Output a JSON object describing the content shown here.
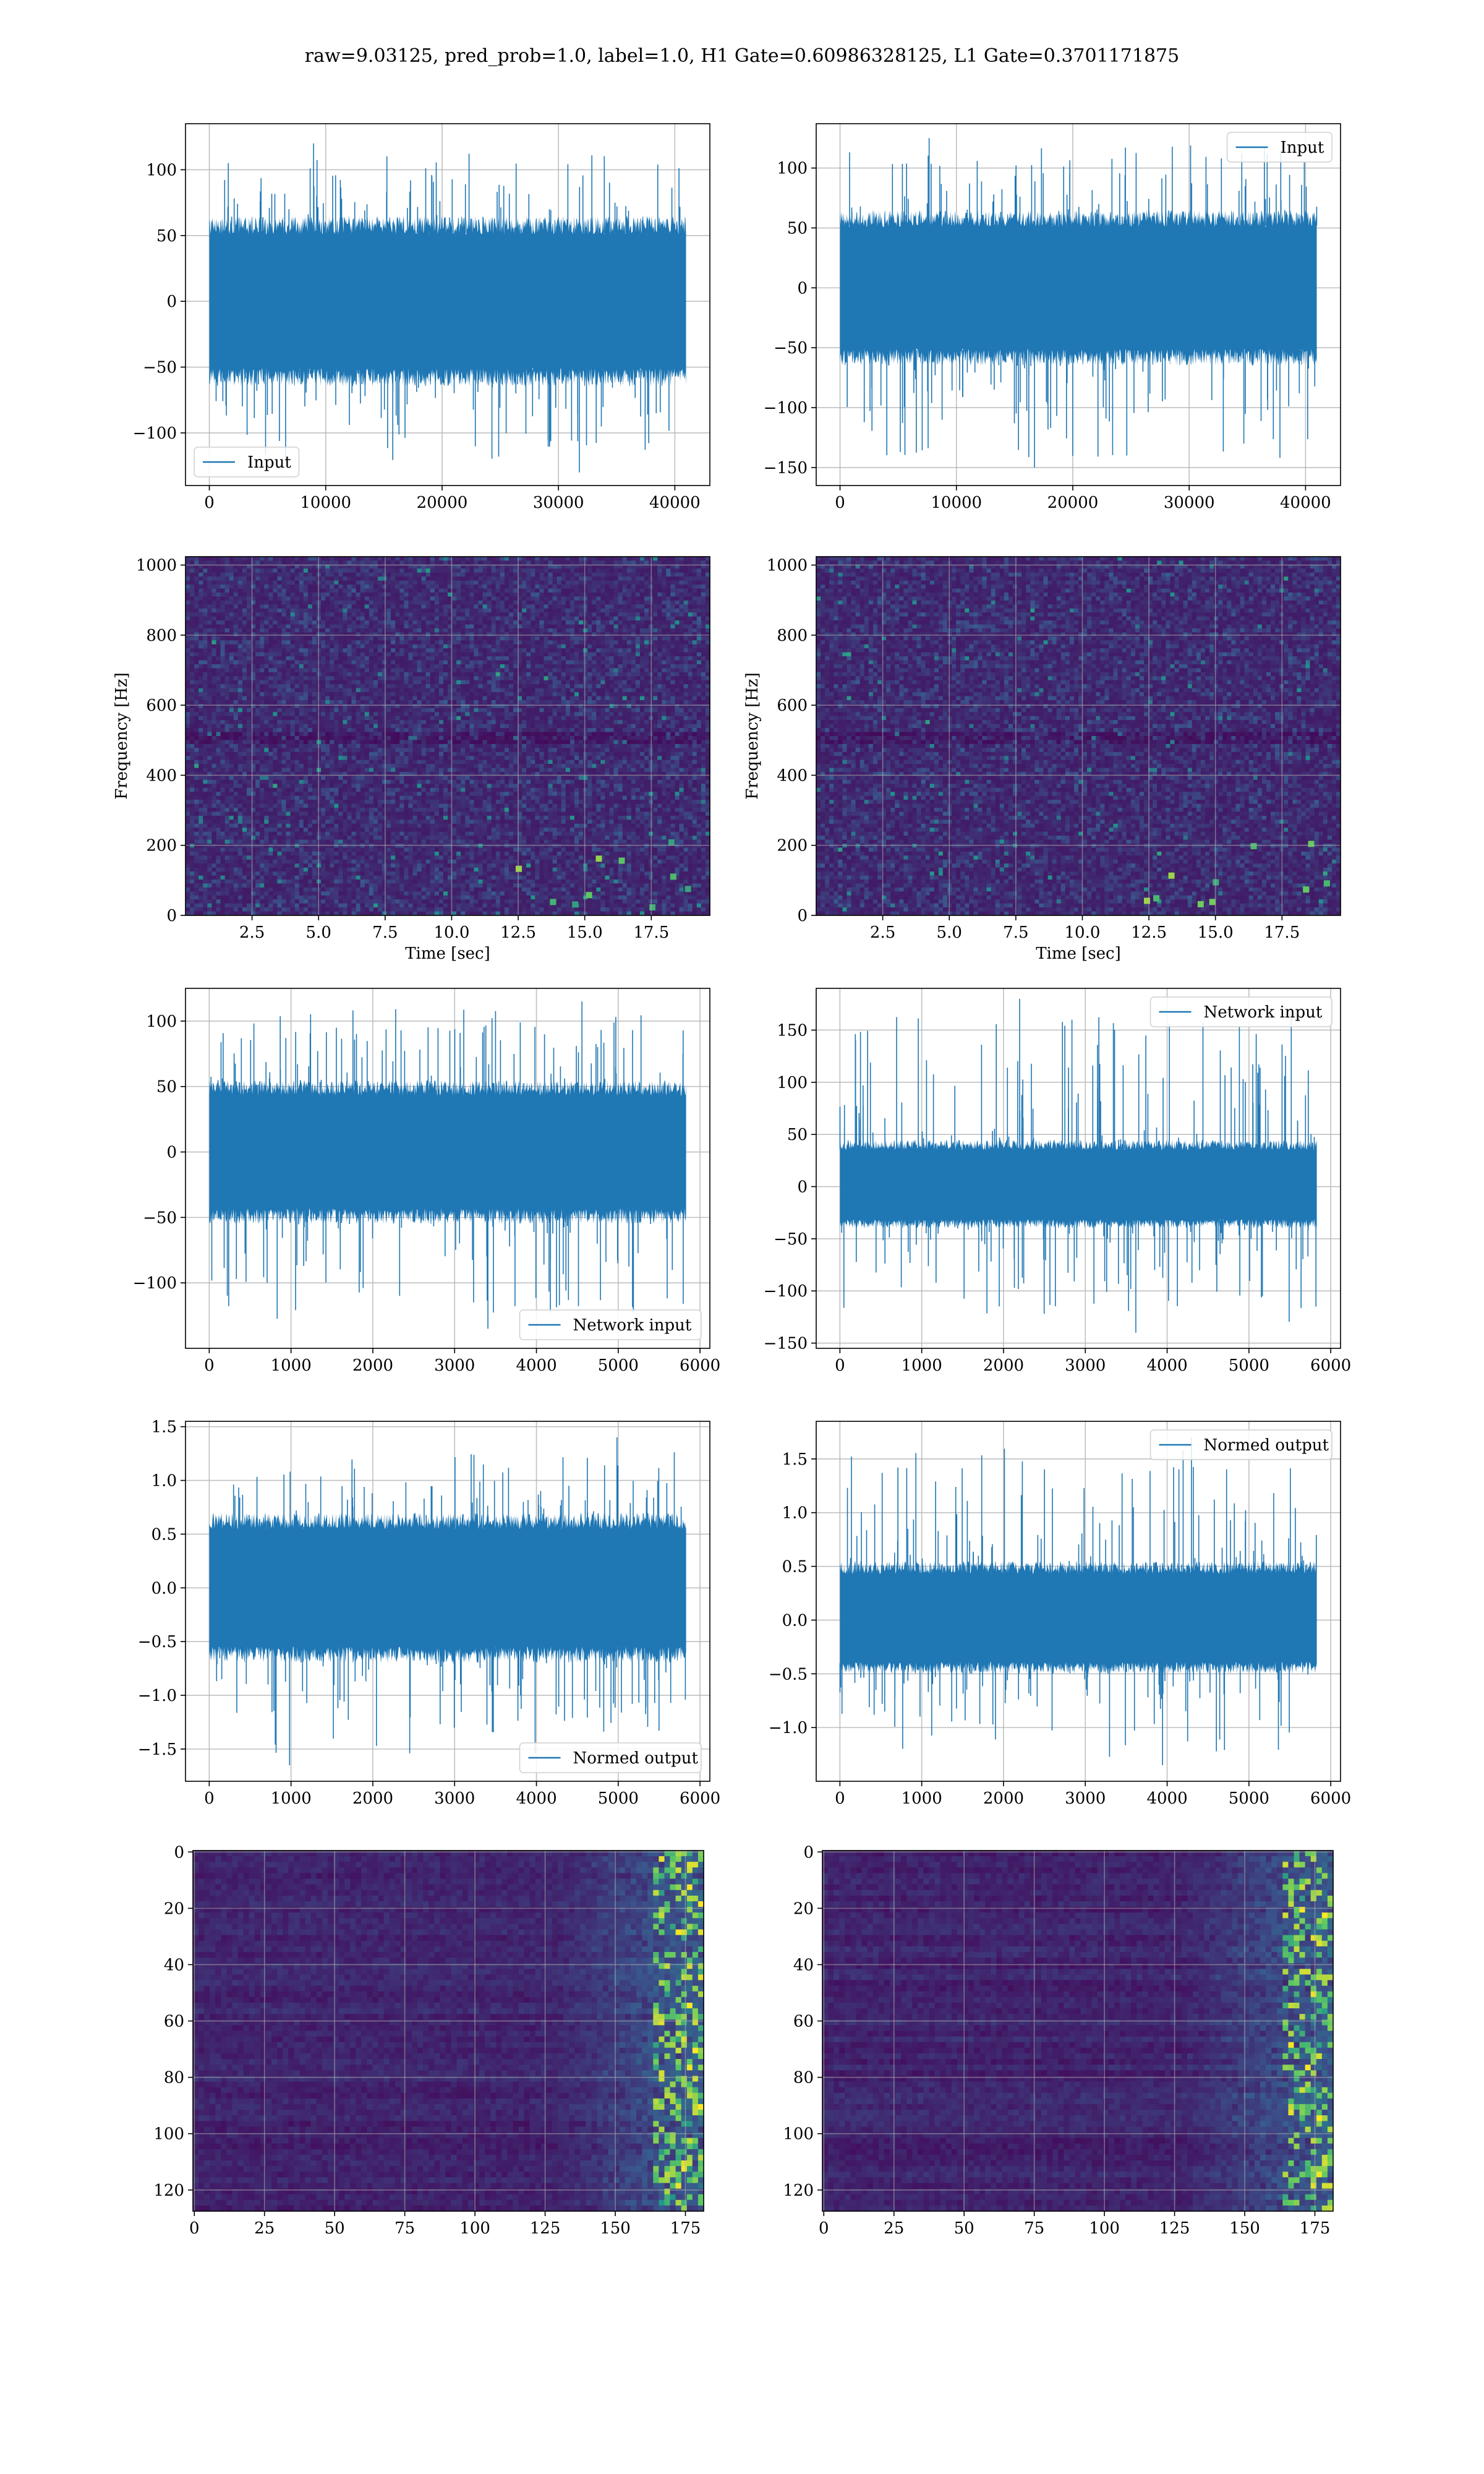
{
  "figure": {
    "suptitle": "raw=9.03125, pred_prob=1.0, label=1.0, H1 Gate=0.60986328125, L1 Gate=0.3701171875"
  },
  "colors": {
    "series_blue": "#1f77b4",
    "viridis_dark": "#440154",
    "viridis_mid": "#3b528b",
    "viridis_teal": "#21918c",
    "viridis_green": "#5ec962",
    "viridis_yellow": "#fde725",
    "grid": "#b0b0b0"
  },
  "chart_data": [
    {
      "id": "input-h1",
      "type": "line",
      "series": [
        {
          "name": "Input",
          "envelope": {
            "x_range": [
              0,
              40960
            ],
            "typical_lo": -65,
            "typical_hi": 65,
            "extreme_lo": -130,
            "extreme_hi": 120
          }
        }
      ],
      "xlim": [
        -2048,
        43008
      ],
      "ylim": [
        -140,
        135
      ],
      "xticks": [
        0,
        10000,
        20000,
        30000,
        40000
      ],
      "xtick_labels": [
        "0",
        "10000",
        "20000",
        "30000",
        "40000"
      ],
      "yticks": [
        -100,
        -50,
        0,
        50,
        100
      ],
      "ytick_labels": [
        "−100",
        "−50",
        "0",
        "50",
        "100"
      ],
      "xlabel": "",
      "ylabel": "",
      "grid": true,
      "legend": "lower left"
    },
    {
      "id": "input-l1",
      "type": "line",
      "series": [
        {
          "name": "Input",
          "envelope": {
            "x_range": [
              0,
              40960
            ],
            "typical_lo": -65,
            "typical_hi": 65,
            "extreme_lo": -150,
            "extreme_hi": 125
          }
        }
      ],
      "xlim": [
        -2048,
        43008
      ],
      "ylim": [
        -165,
        137
      ],
      "xticks": [
        0,
        10000,
        20000,
        30000,
        40000
      ],
      "xtick_labels": [
        "0",
        "10000",
        "20000",
        "30000",
        "40000"
      ],
      "yticks": [
        -150,
        -100,
        -50,
        0,
        50,
        100
      ],
      "ytick_labels": [
        "−150",
        "−100",
        "−50",
        "0",
        "50",
        "100"
      ],
      "xlabel": "",
      "ylabel": "",
      "grid": true,
      "legend": "upper right"
    },
    {
      "id": "spec-h1",
      "type": "heatmap",
      "xlim": [
        0,
        19.7
      ],
      "ylim": [
        0,
        1024
      ],
      "xticks": [
        2.5,
        5.0,
        7.5,
        10.0,
        12.5,
        15.0,
        17.5
      ],
      "xtick_labels": [
        "2.5",
        "5.0",
        "7.5",
        "10.0",
        "12.5",
        "15.0",
        "17.5"
      ],
      "yticks": [
        0,
        200,
        400,
        600,
        800,
        1000
      ],
      "ytick_labels": [
        "0",
        "200",
        "400",
        "600",
        "800",
        "1000"
      ],
      "xlabel": "Time [sec]",
      "ylabel": "Frequency [Hz]",
      "grid": true,
      "colormap": "viridis"
    },
    {
      "id": "spec-l1",
      "type": "heatmap",
      "xlim": [
        0,
        19.7
      ],
      "ylim": [
        0,
        1024
      ],
      "xticks": [
        2.5,
        5.0,
        7.5,
        10.0,
        12.5,
        15.0,
        17.5
      ],
      "xtick_labels": [
        "2.5",
        "5.0",
        "7.5",
        "10.0",
        "12.5",
        "15.0",
        "17.5"
      ],
      "yticks": [
        0,
        200,
        400,
        600,
        800,
        1000
      ],
      "ytick_labels": [
        "0",
        "200",
        "400",
        "600",
        "800",
        "1000"
      ],
      "xlabel": "Time [sec]",
      "ylabel": "Frequency [Hz]",
      "grid": true,
      "colormap": "viridis"
    },
    {
      "id": "netin-h1",
      "type": "line",
      "series": [
        {
          "name": "Network input",
          "envelope": {
            "x_range": [
              0,
              5830
            ],
            "typical_lo": -55,
            "typical_hi": 55,
            "extreme_lo": -135,
            "extreme_hi": 115
          }
        }
      ],
      "xlim": [
        -290,
        6120
      ],
      "ylim": [
        -150,
        125
      ],
      "xticks": [
        0,
        1000,
        2000,
        3000,
        4000,
        5000,
        6000
      ],
      "xtick_labels": [
        "0",
        "1000",
        "2000",
        "3000",
        "4000",
        "5000",
        "6000"
      ],
      "yticks": [
        -100,
        -50,
        0,
        50,
        100
      ],
      "ytick_labels": [
        "−100",
        "−50",
        "0",
        "50",
        "100"
      ],
      "xlabel": "",
      "ylabel": "",
      "grid": true,
      "legend": "lower right"
    },
    {
      "id": "netin-l1",
      "type": "line",
      "series": [
        {
          "name": "Network input",
          "envelope": {
            "x_range": [
              0,
              5830
            ],
            "typical_lo": -40,
            "typical_hi": 45,
            "extreme_lo": -140,
            "extreme_hi": 180
          }
        }
      ],
      "xlim": [
        -290,
        6120
      ],
      "ylim": [
        -155,
        190
      ],
      "xticks": [
        0,
        1000,
        2000,
        3000,
        4000,
        5000,
        6000
      ],
      "xtick_labels": [
        "0",
        "1000",
        "2000",
        "3000",
        "4000",
        "5000",
        "6000"
      ],
      "yticks": [
        -150,
        -100,
        -50,
        0,
        50,
        100,
        150
      ],
      "ytick_labels": [
        "−150",
        "−100",
        "−50",
        "0",
        "50",
        "100",
        "150"
      ],
      "xlabel": "",
      "ylabel": "",
      "grid": true,
      "legend": "upper right"
    },
    {
      "id": "normed-h1",
      "type": "line",
      "series": [
        {
          "name": "Normed output",
          "envelope": {
            "x_range": [
              0,
              5830
            ],
            "typical_lo": -0.7,
            "typical_hi": 0.7,
            "extreme_lo": -1.65,
            "extreme_hi": 1.4
          }
        }
      ],
      "xlim": [
        -290,
        6120
      ],
      "ylim": [
        -1.8,
        1.55
      ],
      "xticks": [
        0,
        1000,
        2000,
        3000,
        4000,
        5000,
        6000
      ],
      "xtick_labels": [
        "0",
        "1000",
        "2000",
        "3000",
        "4000",
        "5000",
        "6000"
      ],
      "yticks": [
        -1.5,
        -1.0,
        -0.5,
        0.0,
        0.5,
        1.0,
        1.5
      ],
      "ytick_labels": [
        "−1.5",
        "−1.0",
        "−0.5",
        "0.0",
        "0.5",
        "1.0",
        "1.5"
      ],
      "xlabel": "",
      "ylabel": "",
      "grid": true,
      "legend": "lower right"
    },
    {
      "id": "normed-l1",
      "type": "line",
      "series": [
        {
          "name": "Normed output",
          "envelope": {
            "x_range": [
              0,
              5830
            ],
            "typical_lo": -0.5,
            "typical_hi": 0.55,
            "extreme_lo": -1.35,
            "extreme_hi": 1.7
          }
        }
      ],
      "xlim": [
        -290,
        6120
      ],
      "ylim": [
        -1.5,
        1.85
      ],
      "xticks": [
        0,
        1000,
        2000,
        3000,
        4000,
        5000,
        6000
      ],
      "xtick_labels": [
        "0",
        "1000",
        "2000",
        "3000",
        "4000",
        "5000",
        "6000"
      ],
      "yticks": [
        -1.0,
        -0.5,
        0.0,
        0.5,
        1.0,
        1.5
      ],
      "ytick_labels": [
        "−1.0",
        "−0.5",
        "0.0",
        "0.5",
        "1.0",
        "1.5"
      ],
      "xlabel": "",
      "ylabel": "",
      "grid": true,
      "legend": "upper right"
    },
    {
      "id": "features-h1",
      "type": "heatmap",
      "xlim": [
        -0.5,
        181.5
      ],
      "ylim": [
        127.5,
        -0.5
      ],
      "xticks": [
        0,
        25,
        50,
        75,
        100,
        125,
        150,
        175
      ],
      "xtick_labels": [
        "0",
        "25",
        "50",
        "75",
        "100",
        "125",
        "150",
        "175"
      ],
      "yticks": [
        0,
        20,
        40,
        60,
        80,
        100,
        120
      ],
      "ytick_labels": [
        "0",
        "20",
        "40",
        "60",
        "80",
        "100",
        "120"
      ],
      "xlabel": "",
      "ylabel": "",
      "grid": true,
      "colormap": "viridis"
    },
    {
      "id": "features-l1",
      "type": "heatmap",
      "xlim": [
        -0.5,
        181.5
      ],
      "ylim": [
        127.5,
        -0.5
      ],
      "xticks": [
        0,
        25,
        50,
        75,
        100,
        125,
        150,
        175
      ],
      "xtick_labels": [
        "0",
        "25",
        "50",
        "75",
        "100",
        "125",
        "150",
        "175"
      ],
      "yticks": [
        0,
        20,
        40,
        60,
        80,
        100,
        120
      ],
      "ytick_labels": [
        "0",
        "20",
        "40",
        "60",
        "80",
        "100",
        "120"
      ],
      "xlabel": "",
      "ylabel": "",
      "grid": true,
      "colormap": "viridis"
    }
  ]
}
